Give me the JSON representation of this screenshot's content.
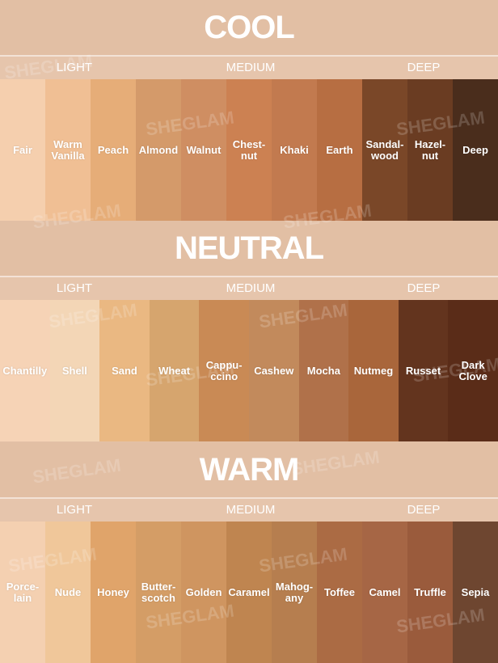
{
  "watermark": "SHEGLAM",
  "sections": [
    {
      "title": "COOL",
      "labels": [
        "LIGHT",
        "MEDIUM",
        "DEEP"
      ],
      "shades": [
        {
          "name": "Fair",
          "color": "#f5cfae"
        },
        {
          "name": "Warm\nVanilla",
          "color": "#f0bf94"
        },
        {
          "name": "Peach",
          "color": "#e6ad78"
        },
        {
          "name": "Almond",
          "color": "#d49a6a"
        },
        {
          "name": "Walnut",
          "color": "#cf8e62"
        },
        {
          "name": "Chest-\nnut",
          "color": "#cc8152"
        },
        {
          "name": "Khaki",
          "color": "#c27a4f"
        },
        {
          "name": "Earth",
          "color": "#b76e42"
        },
        {
          "name": "Sandal-\nwood",
          "color": "#7a4728"
        },
        {
          "name": "Hazel-\nnut",
          "color": "#6a3c22"
        },
        {
          "name": "Deep",
          "color": "#4a2d1c"
        }
      ]
    },
    {
      "title": "NEUTRAL",
      "labels": [
        "LIGHT",
        "MEDIUM",
        "DEEP"
      ],
      "shades": [
        {
          "name": "Chantilly",
          "color": "#f6d3b6"
        },
        {
          "name": "Shell",
          "color": "#f3d6b6"
        },
        {
          "name": "Sand",
          "color": "#eab882"
        },
        {
          "name": "Wheat",
          "color": "#d6a56e"
        },
        {
          "name": "Cappu-\nccino",
          "color": "#c98a55"
        },
        {
          "name": "Cashew",
          "color": "#c28a5c"
        },
        {
          "name": "Mocha",
          "color": "#b0714a"
        },
        {
          "name": "Nutmeg",
          "color": "#a9663b"
        },
        {
          "name": "Russet",
          "color": "#63341e"
        },
        {
          "name": "Dark\nClove",
          "color": "#5a2c18"
        }
      ]
    },
    {
      "title": "WARM",
      "labels": [
        "LIGHT",
        "MEDIUM",
        "DEEP"
      ],
      "shades": [
        {
          "name": "Porce-\nlain",
          "color": "#f4d0b1"
        },
        {
          "name": "Nude",
          "color": "#f0c79a"
        },
        {
          "name": "Honey",
          "color": "#e0a46a"
        },
        {
          "name": "Butter-\nscotch",
          "color": "#d49d66"
        },
        {
          "name": "Golden",
          "color": "#cf9560"
        },
        {
          "name": "Caramel",
          "color": "#bf8550"
        },
        {
          "name": "Mahog-\nany",
          "color": "#b67e4f"
        },
        {
          "name": "Toffee",
          "color": "#ab6b44"
        },
        {
          "name": "Camel",
          "color": "#a66645"
        },
        {
          "name": "Truffle",
          "color": "#9a5b3c"
        },
        {
          "name": "Sepia",
          "color": "#6e4630"
        }
      ]
    }
  ]
}
